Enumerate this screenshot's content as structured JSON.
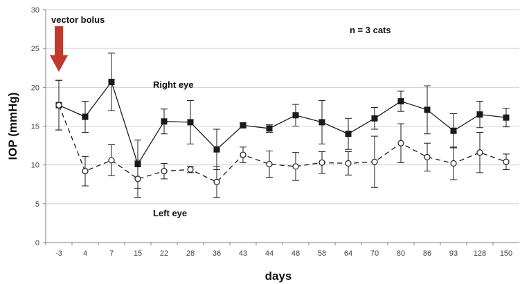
{
  "chart_data": {
    "type": "line",
    "title": "",
    "xlabel": "days",
    "ylabel": "IOP (mmHg)",
    "ylim": [
      0,
      30
    ],
    "yticks": [
      0,
      5,
      10,
      15,
      20,
      25,
      30
    ],
    "grid": true,
    "categories": [
      "-3",
      "4",
      "7",
      "15",
      "22",
      "28",
      "36",
      "43",
      "44",
      "48",
      "58",
      "64",
      "70",
      "80",
      "86",
      "93",
      "128",
      "150"
    ],
    "series": [
      {
        "name": "Right eye",
        "marker": "filled-square",
        "line_style": "solid",
        "values": [
          17.7,
          16.2,
          20.7,
          10.1,
          15.6,
          15.5,
          12.0,
          15.1,
          14.7,
          16.4,
          15.5,
          14.0,
          16.0,
          18.2,
          17.1,
          14.4,
          16.5,
          16.1
        ],
        "error": [
          3.2,
          2.0,
          3.7,
          3.1,
          1.6,
          2.8,
          2.6,
          0.3,
          0.5,
          1.4,
          2.8,
          2.0,
          1.4,
          1.3,
          3.1,
          2.2,
          1.7,
          1.2
        ]
      },
      {
        "name": "Left eye",
        "marker": "open-circle",
        "line_style": "dashed",
        "values": [
          17.7,
          9.2,
          10.6,
          8.2,
          9.2,
          9.4,
          7.8,
          11.3,
          10.1,
          9.8,
          10.3,
          10.2,
          10.4,
          12.8,
          11.0,
          10.2,
          11.6,
          10.4
        ],
        "error": [
          3.2,
          1.9,
          2.0,
          2.4,
          1.0,
          0.4,
          2.0,
          1.0,
          1.7,
          1.8,
          1.4,
          1.5,
          3.3,
          2.5,
          1.8,
          2.1,
          2.6,
          1.0
        ]
      }
    ],
    "annotations": {
      "bolus_label": "vector bolus",
      "sample_size": "n = 3 cats",
      "right_eye_label": "Right eye",
      "left_eye_label": "Left eye"
    },
    "colors": {
      "arrow": "#c0392b",
      "series": "#1a1a1a",
      "grid": "#cfcfcf",
      "axis": "#7f7f7f"
    }
  }
}
